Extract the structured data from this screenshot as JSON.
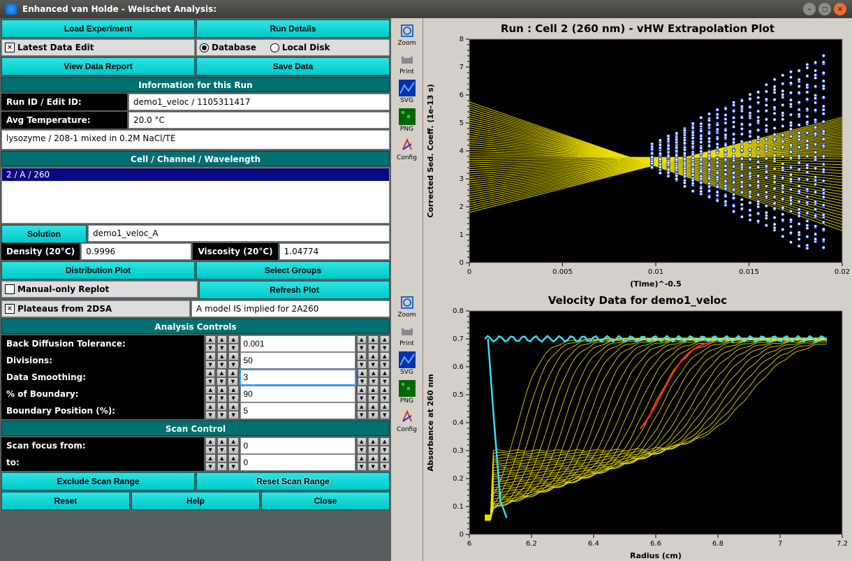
{
  "window": {
    "title": "Enhanced van Holde - Weischet Analysis:"
  },
  "buttons": {
    "load_experiment": "Load Experiment",
    "run_details": "Run Details",
    "view_data_report": "View Data Report",
    "save_data": "Save Data",
    "solution": "Solution",
    "distribution_plot": "Distribution Plot",
    "select_groups": "Select Groups",
    "refresh_plot": "Refresh Plot",
    "exclude_scan_range": "Exclude Scan Range",
    "reset_scan_range": "Reset Scan Range",
    "reset": "Reset",
    "help": "Help",
    "close": "Close"
  },
  "checks": {
    "latest_data_edit": "Latest Data Edit",
    "database": "Database",
    "local_disk": "Local Disk",
    "manual_only_replot": "Manual-only Replot",
    "plateaus_from_2dsa": "Plateaus from 2DSA"
  },
  "headers": {
    "info_run": "Information for this Run",
    "cell_channel": "Cell / Channel / Wavelength",
    "analysis_controls": "Analysis Controls",
    "scan_control": "Scan Control"
  },
  "info": {
    "run_id_label": "Run ID / Edit ID:",
    "run_id_value": "demo1_veloc / 1105311417",
    "avg_temp_label": "Avg Temperature:",
    "avg_temp_value": "20.0 °C",
    "description": "lysozyme / 208-1 mixed in 0.2M NaCl/TE",
    "cell_item": "2 / A / 260",
    "solution_value": "demo1_veloc_A",
    "density_label": "Density (20°C)",
    "density_value": "0.9996",
    "viscosity_label": "Viscosity (20°C)",
    "viscosity_value": "1.04774",
    "model_implied": "A model IS implied for 2A260"
  },
  "spinners": {
    "back_diff_label": "Back Diffusion Tolerance:",
    "back_diff_value": "0.001",
    "divisions_label": "Divisions:",
    "divisions_value": "50",
    "smoothing_label": "Data Smoothing:",
    "smoothing_value": "3",
    "boundary_pct_label": "% of Boundary:",
    "boundary_pct_value": "90",
    "boundary_pos_label": "Boundary Position (%):",
    "boundary_pos_value": "5",
    "scan_from_label": "Scan focus from:",
    "scan_from_value": "0",
    "scan_to_label": "to:",
    "scan_to_value": "0"
  },
  "toolbar": {
    "zoom": "Zoom",
    "print": "Print",
    "svg": "SVG",
    "png": "PNG",
    "config": "Config"
  },
  "top_plot": {
    "title": "Run : Cell 2 (260 nm) - vHW Extrapolation Plot",
    "ylabel": "Corrected Sed. Coeff. (1e-13 s)",
    "xlabel": "(Time)^-0.5",
    "xlim": [
      0,
      0.02
    ],
    "xticks": [
      "0",
      "0.005",
      "0.01",
      "0.015",
      "0.02"
    ],
    "ylim": [
      0,
      8
    ],
    "yticks": [
      "0",
      "1",
      "2",
      "3",
      "4",
      "5",
      "6",
      "7",
      "8"
    ],
    "line_color": "#f0e000",
    "marker_color": "#e0f0ff",
    "marker_edge": "#0020a0",
    "intercepts_low": 1.8,
    "intercepts_high": 5.75,
    "slope_range": [
      -120,
      150
    ],
    "scan_x_start": 0.0098,
    "scan_x_end": 0.019,
    "scan_count": 22
  },
  "bot_plot": {
    "title": "Velocity Data for demo1_veloc",
    "ylabel": "Absorbance at 260 nm",
    "xlabel": "Radius (cm)",
    "xlim": [
      6,
      7.2
    ],
    "xticks": [
      "6",
      "6.2",
      "6.4",
      "6.6",
      "6.8",
      "7",
      "7.2"
    ],
    "ylim": [
      0,
      0.8
    ],
    "yticks": [
      "0",
      "0.1",
      "0.2",
      "0.3",
      "0.4",
      "0.5",
      "0.6",
      "0.7",
      "0.8"
    ],
    "scan_color": "#f0e000",
    "overlay_color": "#30e0ff",
    "highlight_color": "#ff2020",
    "n_scans": 30
  }
}
